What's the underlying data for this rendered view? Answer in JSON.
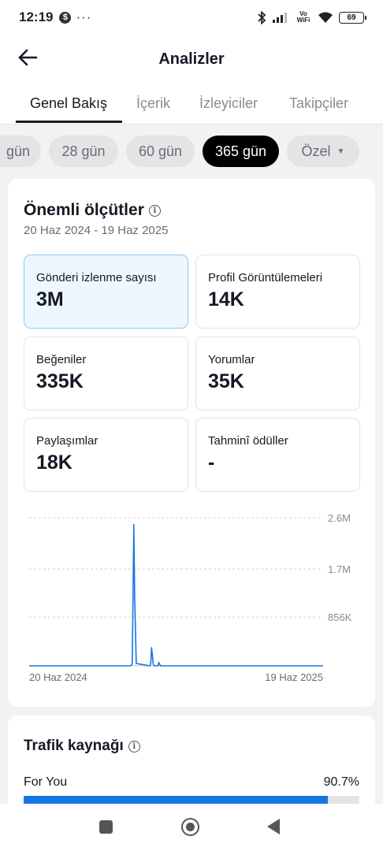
{
  "status_bar": {
    "time": "12:19",
    "dots": "···",
    "network_label": "Vo WiFi",
    "battery": "69"
  },
  "header": {
    "title": "Analizler"
  },
  "tabs": [
    {
      "label": "Genel Bakış",
      "active": true
    },
    {
      "label": "İçerik",
      "active": false
    },
    {
      "label": "İzleyiciler",
      "active": false
    },
    {
      "label": "Takipçiler",
      "active": false
    }
  ],
  "range_chips": [
    {
      "label": "gün",
      "active": false
    },
    {
      "label": "28 gün",
      "active": false
    },
    {
      "label": "60 gün",
      "active": false
    },
    {
      "label": "365 gün",
      "active": true
    },
    {
      "label": "Özel",
      "active": false,
      "has_dropdown": true
    }
  ],
  "key_metrics": {
    "title": "Önemli ölçütler",
    "date_range": "20 Haz 2024 - 19 Haz 2025",
    "items": [
      {
        "label": "Gönderi izlenme sayısı",
        "value": "3M",
        "selected": true
      },
      {
        "label": "Profil Görüntülemeleri",
        "value": "14K",
        "selected": false
      },
      {
        "label": "Beğeniler",
        "value": "335K",
        "selected": false
      },
      {
        "label": "Yorumlar",
        "value": "35K",
        "selected": false
      },
      {
        "label": "Paylaşımlar",
        "value": "18K",
        "selected": false
      },
      {
        "label": "Tahminî ödüller",
        "value": "-",
        "selected": false
      }
    ]
  },
  "chart_data": {
    "type": "line",
    "title": "",
    "xlabel": "",
    "ylabel": "",
    "x_tick_labels": [
      "20 Haz 2024",
      "19 Haz 2025"
    ],
    "y_tick_labels": [
      "2.6M",
      "1.7M",
      "856K"
    ],
    "ylim": [
      0,
      2600000
    ],
    "grid": true,
    "series": [
      {
        "x": [
          0,
          125,
          127,
          128,
          129,
          130,
          131,
          133,
          150,
          151,
          152,
          153,
          154,
          155,
          156,
          160,
          161,
          162,
          163,
          365
        ],
        "values": [
          0,
          0,
          8000,
          60000,
          1200000,
          2480000,
          1200000,
          40000,
          0,
          40000,
          320000,
          180000,
          30000,
          5000,
          0,
          0,
          60000,
          30000,
          0,
          0
        ]
      }
    ],
    "color": "#1676e3"
  },
  "traffic": {
    "title": "Trafik kaynağı",
    "items": [
      {
        "label": "For You",
        "value": "90.7%",
        "fraction": 0.907
      }
    ]
  }
}
